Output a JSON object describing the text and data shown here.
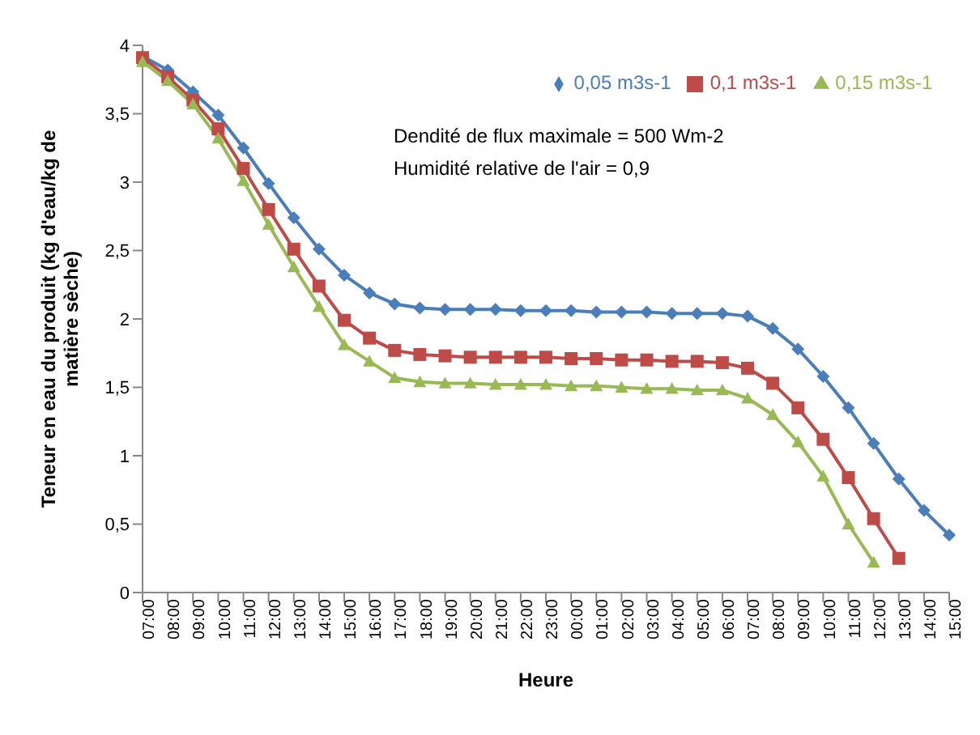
{
  "chart_data": {
    "type": "line",
    "xlabel": "Heure",
    "ylabel": "Teneur en eau du produit (kg d'eau/kg de matière sèche)",
    "annotations": [
      "Dendité de flux maximale = 500 Wm-2",
      "Humidité relative de l'air = 0,9"
    ],
    "categories": [
      "07:00",
      "08:00",
      "09:00",
      "10:00",
      "11:00",
      "12:00",
      "13:00",
      "14:00",
      "15:00",
      "16:00",
      "17:00",
      "18:00",
      "19:00",
      "20:00",
      "21:00",
      "22:00",
      "23:00",
      "00:00",
      "01:00",
      "02:00",
      "03:00",
      "04:00",
      "05:00",
      "06:00",
      "07:00",
      "08:00",
      "09:00",
      "10:00",
      "11:00",
      "12:00",
      "13:00",
      "14:00",
      "15:00"
    ],
    "ylim": [
      0,
      4
    ],
    "yticks": [
      0,
      {
        "value": 0.5,
        "label": "0,5"
      },
      1,
      {
        "value": 1.5,
        "label": "1,5"
      },
      2,
      {
        "value": 2.5,
        "label": "2,5"
      },
      3,
      {
        "value": 3.5,
        "label": "3,5"
      },
      4
    ],
    "grid": false,
    "legend": "top right",
    "line_style": "solid",
    "series": [
      {
        "name": "0,05 m3s-1",
        "color": "#4a7ebb",
        "marker": "diamond",
        "values": [
          3.92,
          3.82,
          3.66,
          3.49,
          3.25,
          2.99,
          2.74,
          2.51,
          2.32,
          2.19,
          2.11,
          2.08,
          2.07,
          2.07,
          2.07,
          2.06,
          2.06,
          2.06,
          2.05,
          2.05,
          2.05,
          2.04,
          2.04,
          2.04,
          2.02,
          1.93,
          1.78,
          1.58,
          1.35,
          1.09,
          0.83,
          0.6,
          0.42
        ]
      },
      {
        "name": "0,1 m3s-1",
        "color": "#be4b48",
        "marker": "square",
        "values": [
          3.91,
          3.77,
          3.6,
          3.39,
          3.1,
          2.8,
          2.51,
          2.24,
          1.99,
          1.86,
          1.77,
          1.74,
          1.73,
          1.72,
          1.72,
          1.72,
          1.72,
          1.71,
          1.71,
          1.7,
          1.7,
          1.69,
          1.69,
          1.68,
          1.64,
          1.53,
          1.35,
          1.12,
          0.84,
          0.54,
          0.25,
          null,
          null
        ]
      },
      {
        "name": "0,15 m3s-1",
        "color": "#98b954",
        "marker": "triangle",
        "values": [
          3.88,
          3.74,
          3.57,
          3.32,
          3.01,
          2.69,
          2.38,
          2.09,
          1.81,
          1.69,
          1.57,
          1.54,
          1.53,
          1.53,
          1.52,
          1.52,
          1.52,
          1.51,
          1.51,
          1.5,
          1.49,
          1.49,
          1.48,
          1.48,
          1.42,
          1.3,
          1.1,
          0.85,
          0.5,
          0.22,
          null,
          null,
          null
        ]
      }
    ]
  }
}
